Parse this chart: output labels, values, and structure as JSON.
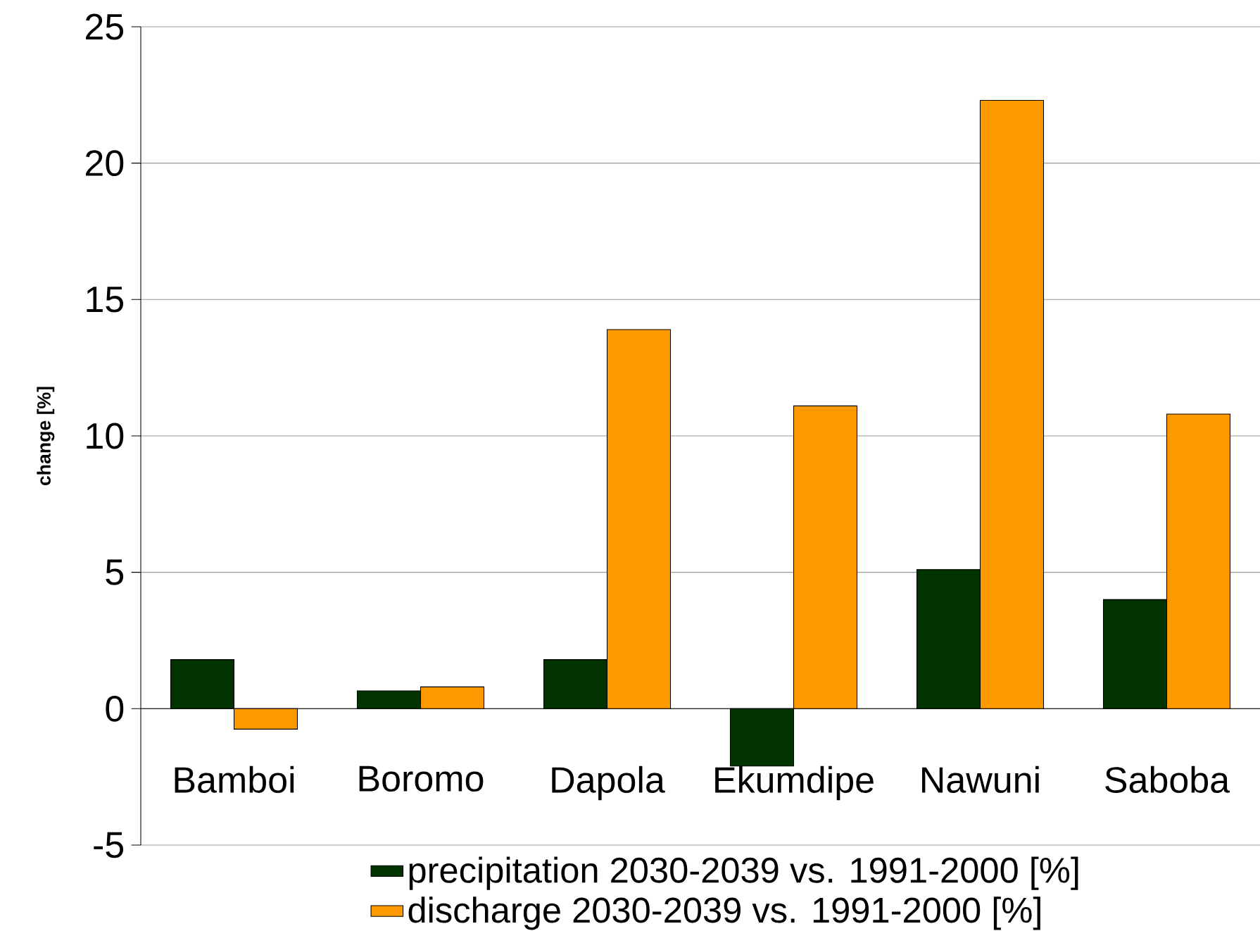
{
  "chart_data": {
    "type": "bar",
    "ylabel": "change [%]",
    "categories": [
      "Bamboi",
      "Boromo",
      "Dapola",
      "Ekumdipe",
      "Nawuni",
      "Saboba"
    ],
    "series": [
      {
        "name": "precipitation 2030-2039 vs. 1991-2000 [%]",
        "color": "#003300",
        "values": [
          1.8,
          0.65,
          1.8,
          -2.1,
          5.1,
          4.0
        ]
      },
      {
        "name": "discharge 2030-2039 vs. 1991-2000 [%]",
        "color": "#ff9900",
        "values": [
          -0.75,
          0.8,
          13.9,
          11.1,
          22.3,
          10.8
        ]
      }
    ],
    "ylim": [
      -5,
      25
    ],
    "yticks": [
      -5,
      0,
      5,
      10,
      15,
      20,
      25
    ],
    "grid": "y",
    "legend": "bottom"
  }
}
